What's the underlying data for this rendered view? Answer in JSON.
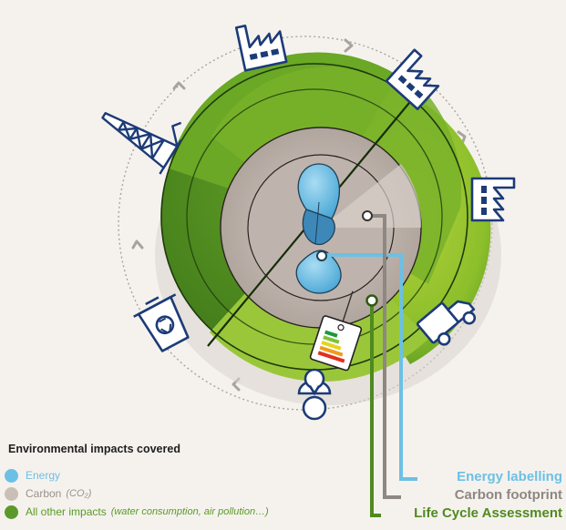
{
  "legend": {
    "title": "Environmental impacts covered",
    "items": [
      {
        "label": "Energy",
        "note": "",
        "color": "#6cc0e5",
        "text_color": "#6cc0e5"
      },
      {
        "label": "Carbon",
        "note": "(CO₂)",
        "color": "#c9bfb6",
        "text_color": "#9a908a"
      },
      {
        "label": "All other impacts",
        "note": "(water consumption, air pollution…)",
        "color": "#5b9a2a",
        "text_color": "#5a9a23"
      }
    ]
  },
  "callouts": {
    "energy_labelling": "Energy labelling",
    "carbon_footprint": "Carbon footprint",
    "lca": "Life Cycle Assessment"
  },
  "colors": {
    "energy": "#6cc0e5",
    "carbon": "#8f8781",
    "other": "#4f8a1f",
    "outer_sphere_light": "#8cbf2b",
    "outer_sphere_dark": "#4e8a1e",
    "inner_core": "#c4b9b2",
    "background": "#f5f2ee"
  },
  "icons": [
    "factory-icon",
    "factory-icon",
    "factory-icon",
    "oil-rig-icon",
    "truck-icon",
    "person-icon",
    "recycling-bin-icon",
    "energy-label-tag-icon"
  ]
}
